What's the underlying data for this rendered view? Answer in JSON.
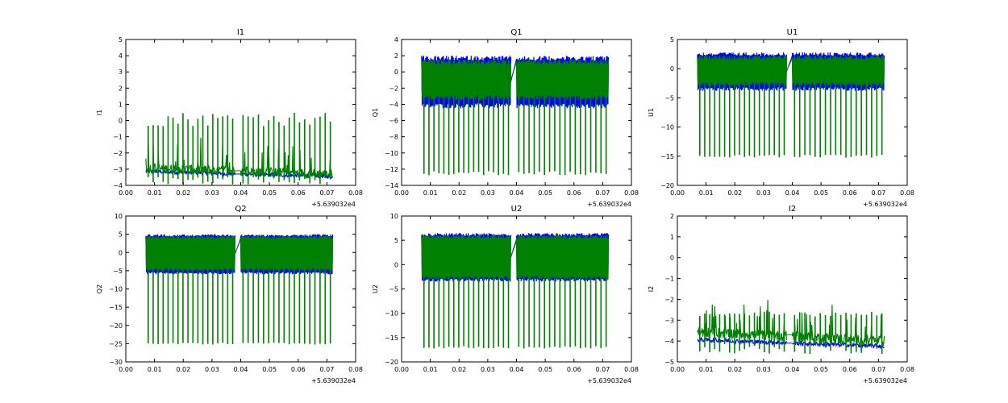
{
  "colors": {
    "series_a": "#0000ff",
    "series_b": "#008000",
    "axes": "#000000",
    "background": "#ffffff"
  },
  "chart_data": [
    {
      "type": "line",
      "title": "I1",
      "ylabel": "I1",
      "x_offset_label": "+5.639032e4",
      "xlim": [
        0.0,
        0.08
      ],
      "ylim": [
        -4,
        5
      ],
      "xticks": [
        "0.00",
        "0.01",
        "0.02",
        "0.03",
        "0.04",
        "0.05",
        "0.06",
        "0.07",
        "0.08"
      ],
      "yticks": [
        "−4",
        "−3",
        "−2",
        "−1",
        "0",
        "1",
        "2",
        "3",
        "4",
        "5"
      ],
      "x_segments": [
        [
          0.007,
          0.038
        ],
        [
          0.04,
          0.072
        ]
      ],
      "series": [
        {
          "name": "blue",
          "color": "#0000ff",
          "baseline_start": -3.1,
          "baseline_end": -3.45,
          "noise": 0.12,
          "spike_height": 0
        },
        {
          "name": "green",
          "color": "#008000",
          "baseline_start": -2.9,
          "baseline_end": -3.3,
          "noise": 0.3,
          "spike_height": 3.0,
          "spike_low": -3.7
        }
      ]
    },
    {
      "type": "line",
      "title": "Q1",
      "ylabel": "Q1",
      "x_offset_label": "+5.639032e4",
      "xlim": [
        0.0,
        0.08
      ],
      "ylim": [
        -14,
        4
      ],
      "xticks": [
        "0.00",
        "0.01",
        "0.02",
        "0.03",
        "0.04",
        "0.05",
        "0.06",
        "0.07",
        "0.08"
      ],
      "yticks": [
        "−14",
        "−12",
        "−10",
        "−8",
        "−6",
        "−4",
        "−2",
        "0",
        "2",
        "4"
      ],
      "x_segments": [
        [
          0.007,
          0.038
        ],
        [
          0.04,
          0.072
        ]
      ],
      "series": [
        {
          "name": "blue",
          "color": "#0000ff",
          "band_high": 2.0,
          "band_low": -4.5,
          "spike_height": 0
        },
        {
          "name": "green",
          "color": "#008000",
          "band_high": 1.5,
          "band_low": -3.5,
          "spike_height": 0,
          "spike_low": -12.5
        }
      ]
    },
    {
      "type": "line",
      "title": "U1",
      "ylabel": "U1",
      "x_offset_label": "+5.639032e4",
      "xlim": [
        0.0,
        0.08
      ],
      "ylim": [
        -20,
        5
      ],
      "xticks": [
        "0.00",
        "0.01",
        "0.02",
        "0.03",
        "0.04",
        "0.05",
        "0.06",
        "0.07",
        "0.08"
      ],
      "yticks": [
        "−20",
        "−15",
        "−10",
        "−5",
        "0",
        "5"
      ],
      "x_segments": [
        [
          0.007,
          0.038
        ],
        [
          0.04,
          0.072
        ]
      ],
      "series": [
        {
          "name": "blue",
          "color": "#0000ff",
          "band_high": 2.8,
          "band_low": -3.8,
          "spike_height": 0
        },
        {
          "name": "green",
          "color": "#008000",
          "band_high": 2.2,
          "band_low": -3.0,
          "spike_height": 0,
          "spike_low": -15.0
        }
      ]
    },
    {
      "type": "line",
      "title": "Q2",
      "ylabel": "Q2",
      "x_offset_label": "+5.639032e4",
      "xlim": [
        0.0,
        0.08
      ],
      "ylim": [
        -30,
        10
      ],
      "xticks": [
        "0.00",
        "0.01",
        "0.02",
        "0.03",
        "0.04",
        "0.05",
        "0.06",
        "0.07",
        "0.08"
      ],
      "yticks": [
        "−30",
        "−25",
        "−20",
        "−15",
        "−10",
        "−5",
        "0",
        "5",
        "10"
      ],
      "x_segments": [
        [
          0.007,
          0.038
        ],
        [
          0.04,
          0.072
        ]
      ],
      "series": [
        {
          "name": "blue",
          "color": "#0000ff",
          "band_high": 5.0,
          "band_low": -6.0,
          "spike_height": 0
        },
        {
          "name": "green",
          "color": "#008000",
          "band_high": 4.5,
          "band_low": -5.0,
          "spike_height": 0,
          "spike_low": -25.0
        }
      ]
    },
    {
      "type": "line",
      "title": "U2",
      "ylabel": "U2",
      "x_offset_label": "+5.639032e4",
      "xlim": [
        0.0,
        0.08
      ],
      "ylim": [
        -20,
        10
      ],
      "xticks": [
        "0.00",
        "0.01",
        "0.02",
        "0.03",
        "0.04",
        "0.05",
        "0.06",
        "0.07",
        "0.08"
      ],
      "yticks": [
        "−20",
        "−15",
        "−10",
        "−5",
        "0",
        "5",
        "10"
      ],
      "x_segments": [
        [
          0.007,
          0.038
        ],
        [
          0.04,
          0.072
        ]
      ],
      "series": [
        {
          "name": "blue",
          "color": "#0000ff",
          "band_high": 6.5,
          "band_low": -3.5,
          "spike_height": 0
        },
        {
          "name": "green",
          "color": "#008000",
          "band_high": 6.0,
          "band_low": -3.0,
          "spike_height": 0,
          "spike_low": -17.0
        }
      ]
    },
    {
      "type": "line",
      "title": "I2",
      "ylabel": "I2",
      "x_offset_label": "+5.639032e4",
      "xlim": [
        0.0,
        0.08
      ],
      "ylim": [
        -5,
        2
      ],
      "xticks": [
        "0.00",
        "0.01",
        "0.02",
        "0.03",
        "0.04",
        "0.05",
        "0.06",
        "0.07",
        "0.08"
      ],
      "yticks": [
        "−5",
        "−4",
        "−3",
        "−2",
        "−1",
        "0",
        "1",
        "2"
      ],
      "x_segments": [
        [
          0.007,
          0.038
        ],
        [
          0.04,
          0.072
        ]
      ],
      "series": [
        {
          "name": "blue",
          "color": "#0000ff",
          "baseline_start": -3.9,
          "baseline_end": -4.25,
          "noise": 0.1,
          "spike_height": 0
        },
        {
          "name": "green",
          "color": "#008000",
          "baseline_start": -3.5,
          "baseline_end": -4.0,
          "noise": 0.25,
          "spike_height": 0.8,
          "spike_low": -4.4
        }
      ]
    }
  ]
}
